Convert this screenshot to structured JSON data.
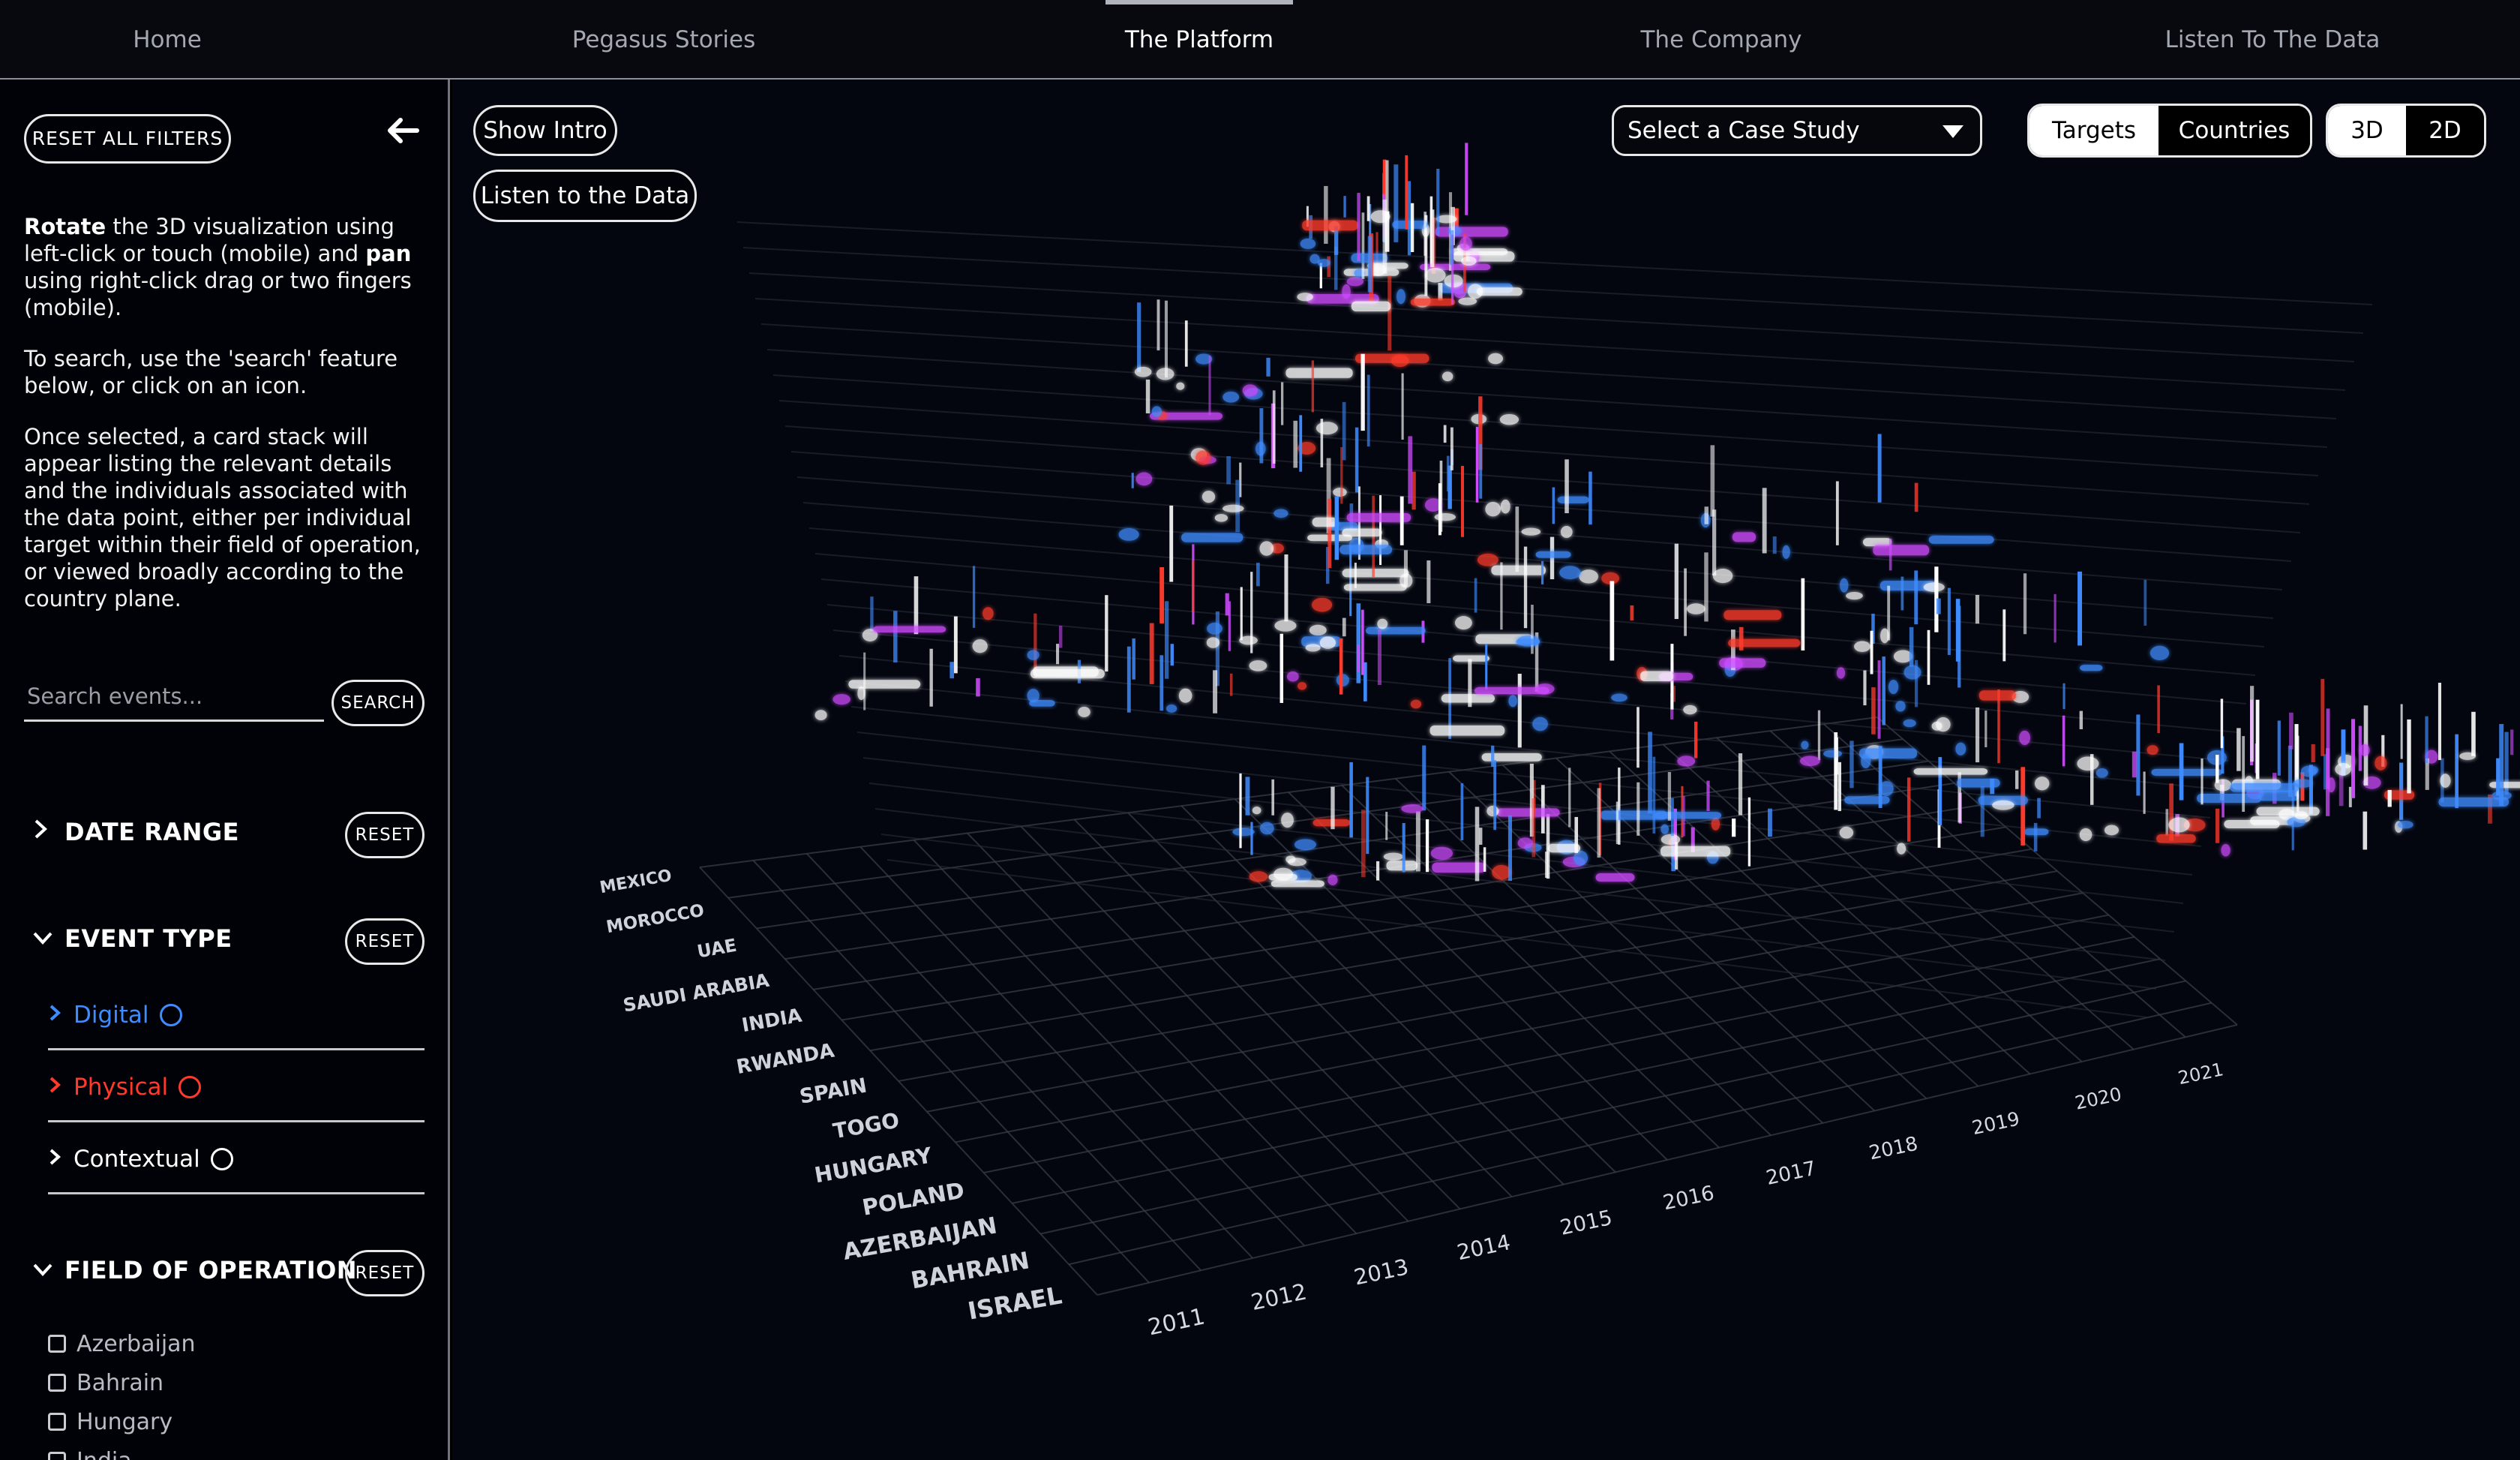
{
  "nav": {
    "items": [
      "Home",
      "Pegasus Stories",
      "The Platform",
      "The Company",
      "Listen To The Data"
    ],
    "active": "The Platform"
  },
  "sidebar": {
    "reset_all": "RESET ALL FILTERS",
    "instructions": {
      "p1_rotate": "Rotate",
      "p1_a": " the 3D visualization using left-click or touch (mobile) and ",
      "p1_pan": "pan",
      "p1_b": " using right-click drag or two fingers (mobile).",
      "p2": "To search, use the 'search' feature below, or click on an icon.",
      "p3": "Once selected, a card stack will appear listing the relevant details and the individuals associated with the data point, either per individual target within their field of operation, or viewed broadly according to the country plane."
    },
    "search": {
      "placeholder": "Search events...",
      "button": "SEARCH"
    },
    "date_range": {
      "label": "DATE RANGE",
      "reset": "RESET"
    },
    "event_type": {
      "label": "EVENT TYPE",
      "reset": "RESET",
      "items": [
        {
          "label": "Digital",
          "color": "#3f8cff"
        },
        {
          "label": "Physical",
          "color": "#ff3a2c"
        },
        {
          "label": "Contextual",
          "color": "#ffffff"
        }
      ]
    },
    "field_of_operation": {
      "label": "FIELD OF OPERATION",
      "reset": "RESET",
      "items": [
        "Azerbaijan",
        "Bahrain",
        "Hungary",
        "India"
      ]
    }
  },
  "controls": {
    "show_intro": "Show Intro",
    "listen": "Listen to the Data",
    "case_study_placeholder": "Select a Case Study",
    "mode": {
      "targets": "Targets",
      "countries": "Countries",
      "selected": "Targets"
    },
    "dimension": {
      "three_d": "3D",
      "two_d": "2D",
      "selected": "3D"
    }
  },
  "chart_data": {
    "type": "scatter",
    "x_ticks": [
      "2011",
      "2012",
      "2013",
      "2014",
      "2015",
      "2016",
      "2017",
      "2018",
      "2019",
      "2020",
      "2021"
    ],
    "country_labels": [
      "MEXICO",
      "MOROCCO",
      "UAE",
      "SAUDI ARABIA",
      "INDIA",
      "RWANDA",
      "SPAIN",
      "TOGO",
      "HUNGARY",
      "POLAND",
      "AZERBAIJAN",
      "BAHRAIN",
      "ISRAEL"
    ],
    "event_colors": {
      "digital": "#3f8cff",
      "physical": "#ff3a2c",
      "contextual": "#ffffff",
      "highlight": "#d04cff"
    }
  }
}
